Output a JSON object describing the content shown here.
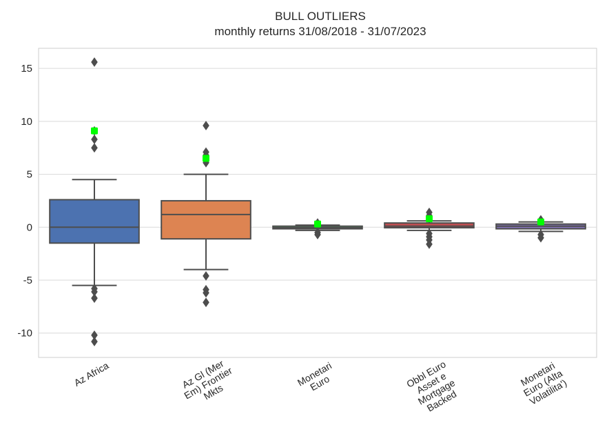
{
  "chart_data": {
    "type": "box",
    "title": "BULL OUTLIERS",
    "subtitle": "monthly returns 31/08/2018 - 31/07/2023",
    "xlabel": "",
    "ylabel": "",
    "ylim": [
      -12.3,
      16.9
    ],
    "yticks": [
      -10,
      -5,
      0,
      5,
      10,
      15
    ],
    "ytick_labels": [
      "-10",
      "-5",
      "0",
      "5",
      "10",
      "15"
    ],
    "grid": true,
    "series": [
      {
        "category": [
          "Az Africa"
        ],
        "color": "#4c72b0",
        "whisker_low": -5.5,
        "q1": -1.5,
        "median": 0.0,
        "q3": 2.6,
        "whisker_high": 4.5,
        "outliers": [
          15.6,
          9.1,
          8.3,
          7.5,
          -5.8,
          -6.1,
          -6.7,
          -10.2,
          -10.8
        ],
        "highlight": 9.1
      },
      {
        "category": [
          "Az Gl (Mer",
          "Em) Frontier",
          "Mkts"
        ],
        "color": "#dd8452",
        "whisker_low": -4.0,
        "q1": -1.1,
        "median": 1.2,
        "q3": 2.5,
        "whisker_high": 5.0,
        "outliers": [
          9.6,
          7.1,
          6.8,
          6.1,
          -4.6,
          -5.9,
          -6.2,
          -7.1
        ],
        "highlight": 6.5
      },
      {
        "category": [
          "Monetari",
          "Euro"
        ],
        "color": "#55a868",
        "whisker_low": -0.3,
        "q1": -0.15,
        "median": -0.05,
        "q3": 0.1,
        "whisker_high": 0.2,
        "outliers": [
          0.4,
          -0.5,
          -0.7
        ],
        "highlight": 0.3
      },
      {
        "category": [
          "Obbl Euro",
          "Asset e",
          "Mortgage",
          "Backed"
        ],
        "color": "#c44e52",
        "whisker_low": -0.3,
        "q1": -0.05,
        "median": 0.1,
        "q3": 0.4,
        "whisker_high": 0.6,
        "outliers": [
          1.4,
          1.1,
          -0.6,
          -0.9,
          -1.2,
          -1.6
        ],
        "highlight": 0.8
      },
      {
        "category": [
          "Monetari",
          "Euro (Alta",
          "Volatilita')"
        ],
        "color": "#8172b3",
        "whisker_low": -0.4,
        "q1": -0.15,
        "median": 0.1,
        "q3": 0.3,
        "whisker_high": 0.5,
        "outliers": [
          0.7,
          -0.7,
          -1.0
        ],
        "highlight": 0.5
      }
    ],
    "highlight_color": "#00ff00",
    "box_edge_color": "#4d4d4d"
  }
}
